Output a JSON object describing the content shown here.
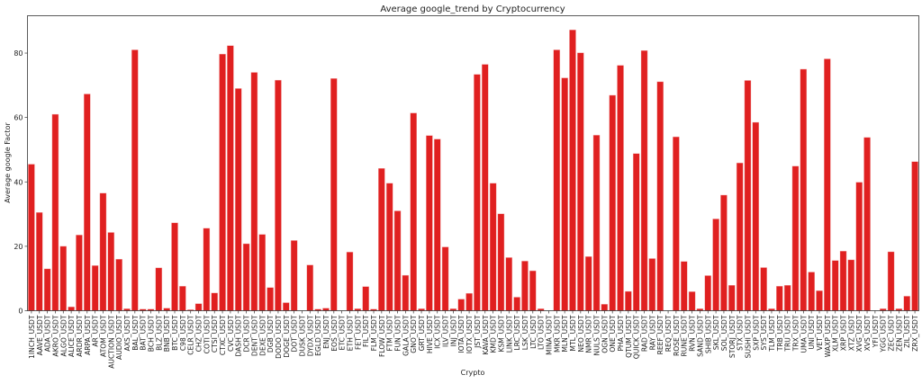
{
  "chart_data": {
    "type": "bar",
    "title": "Average google_trend by Cryptocurrency",
    "xlabel": "Crypto",
    "ylabel": "Average google Factor",
    "ylim": [
      0,
      91.6
    ],
    "yticks": [
      0,
      20,
      40,
      60,
      80
    ],
    "grid": false,
    "bar_color": "#e02020",
    "categories": [
      "1INCH_USDT",
      "AAVE_USDT",
      "ADA_USDT",
      "AKRO_USDT",
      "ALGO_USDT",
      "ALICE_USDT",
      "ARDR_USDT",
      "ARPA_USDT",
      "AR_USDT",
      "ATOM_USDT",
      "AUCTION_USDT",
      "AUDIO_USDT",
      "AXS_USDT",
      "BAL_USDT",
      "BAT_USDT",
      "BCH_USDT",
      "BLZ_USDT",
      "BNB_USDT",
      "BTC_USDT",
      "C98_USDT",
      "CELR_USDT",
      "CHZ_USDT",
      "COTI_USDT",
      "CTSI_USDT",
      "CTXC_USDT",
      "CVC_USDT",
      "DASH_USDT",
      "DCR_USDT",
      "DENT_USDT",
      "DEXE_USDT",
      "DGB_USDT",
      "DODO_USDT",
      "DOGE_USDT",
      "DOT_USDT",
      "DUSK_USDT",
      "DYDX_USDT",
      "EGLD_USDT",
      "ENJ_USDT",
      "EOS_USDT",
      "ETC_USDT",
      "ETH_USDT",
      "FET_USDT",
      "FIL_USDT",
      "FLM_USDT",
      "FLOW_USDT",
      "FTM_USDT",
      "FUN_USDT",
      "GALA_USDT",
      "GNO_USDT",
      "GRT_USDT",
      "HIVE_USDT",
      "ICX_USDT",
      "ILV_USDT",
      "INJ_USDT",
      "IOTA_USDT",
      "IOTX_USDT",
      "JST_USDT",
      "KAVA_USDT",
      "KMD_USDT",
      "KSM_USDT",
      "LINK_USDT",
      "LRC_USDT",
      "LSK_USDT",
      "LTC_USDT",
      "LTO_USDT",
      "MINA_USDT",
      "MKR_USDT",
      "MLN_USDT",
      "MTL_USDT",
      "NEO_USDT",
      "NMR_USDT",
      "NULS_USDT",
      "OGN_USDT",
      "ONE_USDT",
      "PHA_USDT",
      "QTUM_USDT",
      "QUICK_USDT",
      "RAD_USDT",
      "RAY_USDT",
      "REEF_USDT",
      "REQ_USDT",
      "ROSE_USDT",
      "RUNE_USDT",
      "RVN_USDT",
      "SAND_USDT",
      "SHIB_USDT",
      "SKL_USDT",
      "SOL_USDT",
      "STORJ_USDT",
      "STX_USDT",
      "SUSHI_USDT",
      "SXP_USDT",
      "SYS_USDT",
      "TLM_USDT",
      "TRB_USDT",
      "TRU_USDT",
      "TRX_USDT",
      "UMA_USDT",
      "UNI_USDT",
      "VET_USDT",
      "WAXP_USDT",
      "XLM_USDT",
      "XRP_USDT",
      "XTZ_USDT",
      "XVG_USDT",
      "XVS_USDT",
      "YFI_USDT",
      "YGG_USDT",
      "ZEC_USDT",
      "ZEN_USDT",
      "ZIL_USDT",
      "ZRX_USDT"
    ],
    "values": [
      45.5,
      30.5,
      13,
      61,
      20,
      1.2,
      23.5,
      67.3,
      14,
      36.5,
      24.3,
      16,
      0.6,
      81,
      0.5,
      0.5,
      13.3,
      0.8,
      27.3,
      7.6,
      0.3,
      2.2,
      25.6,
      5.5,
      79.7,
      82.3,
      69,
      20.8,
      74,
      23.7,
      7.2,
      71.6,
      2.5,
      21.8,
      0,
      14.2,
      0.5,
      0.8,
      72.1,
      0,
      18.2,
      0.6,
      7.5,
      0.5,
      44.2,
      39.6,
      31,
      11,
      61.4,
      0.6,
      54.4,
      53.3,
      19.8,
      0.6,
      3.6,
      5.4,
      73.4,
      76.5,
      39.6,
      30.1,
      16.5,
      4.2,
      15.4,
      12.4,
      0.6,
      0,
      81,
      72.3,
      87.2,
      80.1,
      16.8,
      54.5,
      2,
      66.9,
      76.2,
      6,
      48.8,
      80.8,
      16.2,
      71.1,
      0,
      54,
      15.3,
      5.9,
      0.6,
      10.9,
      28.5,
      35.9,
      7.9,
      45.9,
      71.5,
      58.5,
      13.4,
      0.6,
      7.6,
      7.9,
      44.9,
      75,
      12,
      6.2,
      78.2,
      15.6,
      18.5,
      15.8,
      39.9,
      53.8,
      0,
      0.6,
      18.3,
      0.6,
      4.5,
      46.3
    ]
  }
}
